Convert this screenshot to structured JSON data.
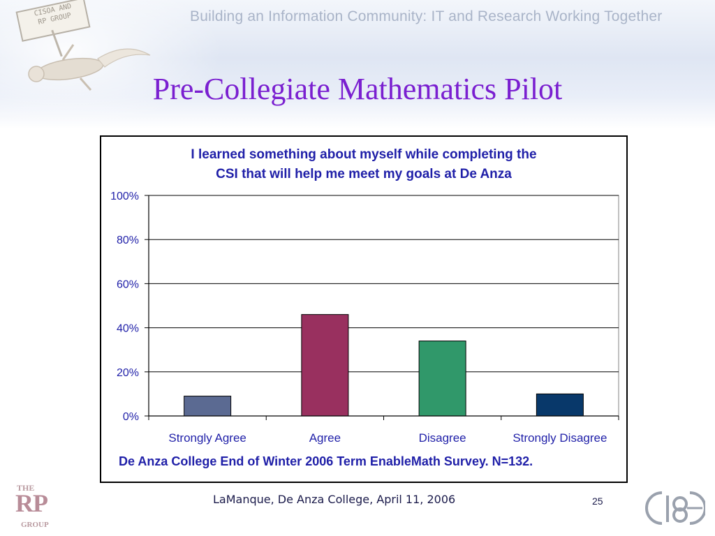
{
  "header": {
    "tagline": "Building an Information Community:  IT and Research Working Together",
    "sign_line1": "CISOA AND",
    "sign_line2": "RP GROUP"
  },
  "slide": {
    "title": "Pre-Collegiate Mathematics Pilot",
    "caption": "De Anza College End of Winter 2006 Term EnableMath Survey.  N=132."
  },
  "chart_data": {
    "type": "bar",
    "title_line1": "I learned something about myself while completing the",
    "title_line2": "CSI that will help me meet my goals at De Anza",
    "categories": [
      "Strongly Agree",
      "Agree",
      "Disagree",
      "Strongly Disagree"
    ],
    "values": [
      9,
      46,
      34,
      10
    ],
    "colors": [
      "#5b6a92",
      "#99305f",
      "#30986a",
      "#08386a"
    ],
    "y_ticks": [
      "0%",
      "20%",
      "40%",
      "60%",
      "80%",
      "100%"
    ],
    "ylim": [
      0,
      100
    ],
    "grid": true,
    "legend": "none"
  },
  "footer": {
    "text": "LaManque, De Anza College, April 11, 2006",
    "page_number": "25",
    "logo_the": "THE",
    "logo_rp": "RP",
    "logo_group": "GROUP"
  }
}
